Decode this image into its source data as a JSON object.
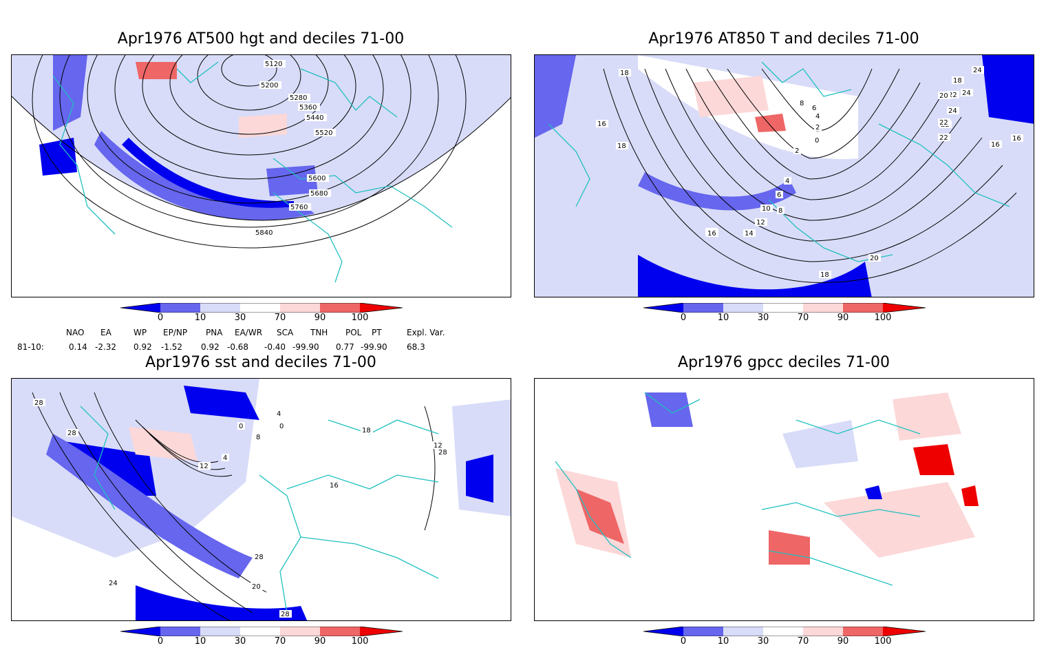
{
  "panels": [
    {
      "id": "z500",
      "title": "Apr1976 AT500 hgt and deciles 71-00",
      "contour_labels": [
        "5120",
        "5200",
        "5280",
        "5360",
        "5440",
        "5520",
        "5600",
        "5680",
        "5760",
        "5840"
      ]
    },
    {
      "id": "t850",
      "title": "Apr1976 AT850 T and deciles 71-00",
      "contour_labels": [
        "18",
        "16",
        "18",
        "8",
        "6",
        "4",
        "2",
        "0",
        "2",
        "4",
        "6",
        "8",
        "10",
        "12",
        "14",
        "16",
        "16",
        "18",
        "20",
        "22",
        "24",
        "22",
        "20",
        "16",
        "16",
        "22",
        "24",
        "24",
        "22",
        "20",
        "18"
      ]
    },
    {
      "id": "sst",
      "title": "Apr1976 sst and deciles 71-00",
      "contour_labels": [
        "28",
        "28",
        "0",
        "4",
        "8",
        "0",
        "4",
        "12",
        "16",
        "18",
        "12",
        "28",
        "20",
        "24",
        "28",
        "28"
      ]
    },
    {
      "id": "gpcc",
      "title": "Apr1976 gpcc deciles 71-00",
      "contour_labels": []
    }
  ],
  "colorbar": {
    "ticks": [
      "0",
      "10",
      "30",
      "70",
      "90",
      "100"
    ],
    "colors": [
      "#0000ee",
      "#6666ee",
      "#d8dcf8",
      "#ffffff",
      "#fcd8d8",
      "#ee6666",
      "#ee0000"
    ]
  },
  "indices": {
    "headers": [
      "NAO",
      "EA",
      "WP",
      "EP/NP",
      "PNA",
      "EA/WR",
      "SCA",
      "TNH",
      "POL",
      "PT",
      "Expl. Var."
    ],
    "row_label": "81-10:",
    "values": [
      "0.14",
      "-2.32",
      "0.92",
      "-1.52",
      "0.92",
      "-0.68",
      "-0.40",
      "-99.90",
      "0.77",
      "-99.90",
      "68.3"
    ]
  },
  "colors": {
    "coast": "#20c0c0",
    "contour": "#000000",
    "grid": "#888888"
  }
}
